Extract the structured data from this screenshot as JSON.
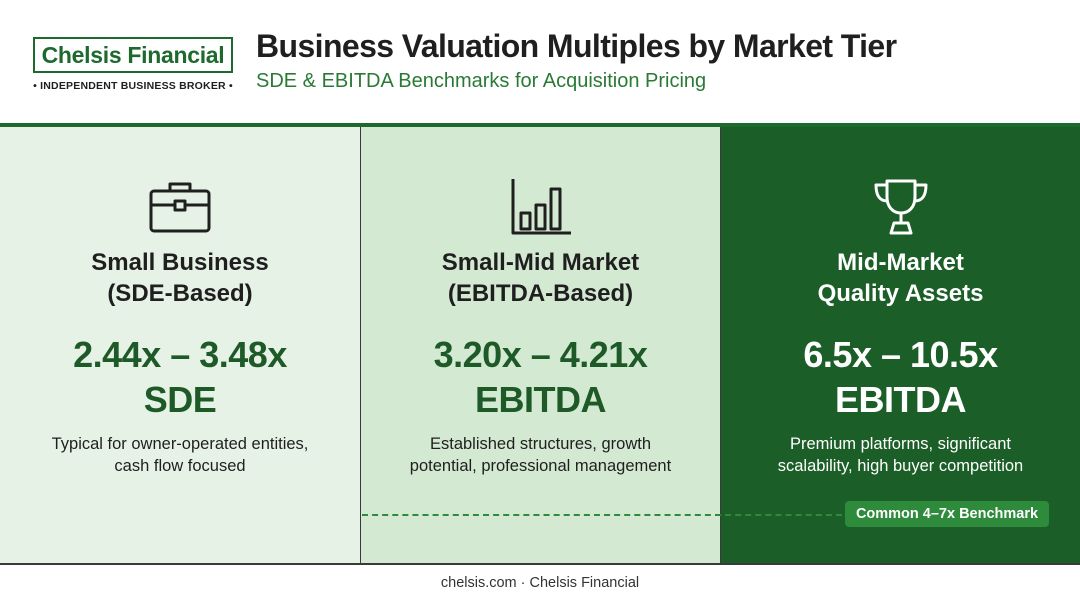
{
  "header": {
    "logo_name": "Chelsis Financial",
    "logo_tagline": "• INDEPENDENT BUSINESS BROKER •",
    "title": "Business Valuation Multiples by Market Tier",
    "subtitle": "SDE & EBITDA Benchmarks for Acquisition Pricing"
  },
  "tiers": [
    {
      "icon": "briefcase-icon",
      "title_line1": "Small Business",
      "title_line2": "(SDE-Based)",
      "range": "2.44x – 3.48x",
      "metric": "SDE",
      "desc_line1": "Typical for owner-operated entities,",
      "desc_line2": "cash flow focused"
    },
    {
      "icon": "bar-chart-icon",
      "title_line1": "Small-Mid Market",
      "title_line2": "(EBITDA-Based)",
      "range": "3.20x – 4.21x",
      "metric": "EBITDA",
      "desc_line1": "Established structures, growth",
      "desc_line2": "potential, professional management"
    },
    {
      "icon": "trophy-icon",
      "title_line1": "Mid-Market",
      "title_line2": "Quality Assets",
      "range": "6.5x – 10.5x",
      "metric": "EBITDA",
      "desc_line1": "Premium platforms, significant",
      "desc_line2": "scalability, high buyer competition"
    }
  ],
  "benchmark": {
    "label": "Common 4–7x Benchmark"
  },
  "footer": {
    "text": "chelsis.com · Chelsis Financial"
  },
  "colors": {
    "brand_green": "#1e6a2e",
    "panel1_bg": "#e7f2e7",
    "panel2_bg": "#d4e9d2",
    "panel3_bg": "#1b5e27",
    "badge_bg": "#2e8b3c"
  }
}
